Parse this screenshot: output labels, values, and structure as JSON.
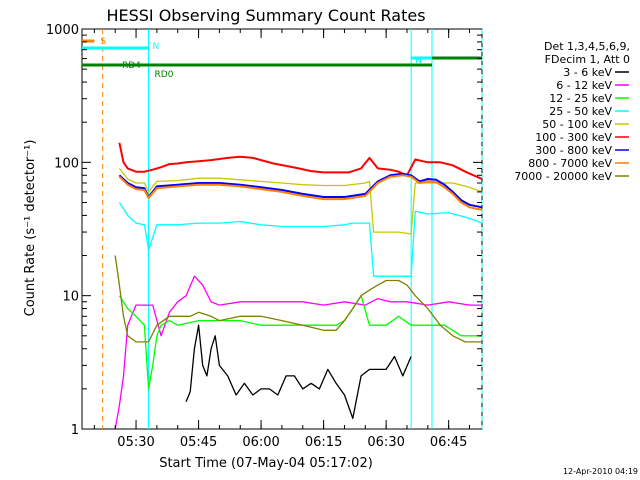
{
  "chart_data": {
    "type": "line",
    "title": "HESSI Observing Summary Count Rates",
    "xlabel": "Start Time (07-May-04 05:17:02)",
    "ylabel": "Count Rate (s⁻¹ detector⁻¹)",
    "yscale": "log",
    "ylim": [
      1,
      1000
    ],
    "x_start": "05:17:02",
    "x_end": "06:53",
    "x_ticks": [
      "05:30",
      "05:45",
      "06:00",
      "06:15",
      "06:30",
      "06:45"
    ],
    "y_ticks": [
      "1",
      "10",
      "100",
      "1000"
    ],
    "grid": false,
    "legend_position": "right",
    "legend_header": [
      "Det 1,3,4,5,6,9,",
      "FDecim 1, Att 0"
    ],
    "series": [
      {
        "name": "3 - 6 keV",
        "color": "#000000",
        "x": [
          "05:42",
          "05:43",
          "05:44",
          "05:45",
          "05:46",
          "05:47",
          "05:48",
          "05:49",
          "05:50",
          "05:52",
          "05:54",
          "05:56",
          "05:58",
          "06:00",
          "06:02",
          "06:04",
          "06:06",
          "06:08",
          "06:10",
          "06:12",
          "06:14",
          "06:16",
          "06:18",
          "06:20",
          "06:22",
          "06:24",
          "06:26",
          "06:28",
          "06:30",
          "06:32",
          "06:34",
          "06:36"
        ],
        "y": [
          1.6,
          1.9,
          4,
          6,
          3,
          2.5,
          4,
          5,
          3,
          2.5,
          1.8,
          2.2,
          1.8,
          2,
          2,
          1.8,
          2.5,
          2.5,
          2,
          2.2,
          2,
          2.8,
          2.2,
          1.8,
          1.2,
          2.5,
          2.8,
          2.8,
          2.8,
          3.5,
          2.5,
          3.5
        ]
      },
      {
        "name": "6 - 12 keV",
        "color": "#ff00ff",
        "x": [
          "05:25",
          "05:26",
          "05:27",
          "05:28",
          "05:30",
          "05:32",
          "05:34",
          "05:36",
          "05:38",
          "05:40",
          "05:42",
          "05:44",
          "05:46",
          "05:48",
          "05:50",
          "05:55",
          "06:00",
          "06:05",
          "06:10",
          "06:15",
          "06:20",
          "06:25",
          "06:28",
          "06:31",
          "06:35",
          "06:40",
          "06:45",
          "06:50",
          "06:53"
        ],
        "y": [
          1,
          1.5,
          2.5,
          6,
          8.5,
          8.5,
          8.5,
          5,
          7.5,
          9,
          10,
          14,
          12,
          9,
          8.5,
          9,
          9,
          9,
          9,
          8.5,
          9,
          8.5,
          9.5,
          9,
          9,
          8.5,
          9,
          8.5,
          8.5
        ]
      },
      {
        "name": "12 - 25 keV",
        "color": "#00ff00",
        "x": [
          "05:26",
          "05:28",
          "05:30",
          "05:32",
          "05:33",
          "05:34",
          "05:35",
          "05:36",
          "05:38",
          "05:40",
          "05:45",
          "05:50",
          "05:55",
          "06:00",
          "06:05",
          "06:10",
          "06:15",
          "06:18",
          "06:20",
          "06:22",
          "06:24",
          "06:26",
          "06:27",
          "06:30",
          "06:33",
          "06:36",
          "06:40",
          "06:44",
          "06:48",
          "06:53"
        ],
        "y": [
          10,
          8,
          7,
          6,
          2,
          3,
          5,
          6,
          6.5,
          6,
          6.5,
          6.5,
          6.5,
          6,
          6,
          6,
          6,
          6,
          6.5,
          8,
          10,
          6,
          6,
          6,
          7,
          6,
          6,
          6,
          5,
          5
        ]
      },
      {
        "name": "25 - 50 keV",
        "color": "#00ffff",
        "x": [
          "05:26",
          "05:28",
          "05:30",
          "05:32",
          "05:33",
          "05:35",
          "05:40",
          "05:45",
          "05:50",
          "05:55",
          "06:00",
          "06:05",
          "06:10",
          "06:15",
          "06:20",
          "06:22",
          "06:26",
          "06:27",
          "06:30",
          "06:33",
          "06:36",
          "06:37",
          "06:40",
          "06:45",
          "06:50",
          "06:53"
        ],
        "y": [
          50,
          40,
          35,
          34,
          22,
          34,
          34,
          35,
          35,
          36,
          34,
          33,
          33,
          33,
          34,
          35,
          35,
          14,
          14,
          14,
          14,
          43,
          41,
          42,
          38,
          35
        ]
      },
      {
        "name": "50 - 100 keV",
        "color": "#c8c800",
        "x": [
          "05:26",
          "05:28",
          "05:30",
          "05:32",
          "05:33",
          "05:35",
          "05:40",
          "05:45",
          "05:50",
          "05:55",
          "06:00",
          "06:05",
          "06:10",
          "06:15",
          "06:20",
          "06:25",
          "06:26",
          "06:27",
          "06:30",
          "06:33",
          "06:36",
          "06:37",
          "06:40",
          "06:43",
          "06:46",
          "06:50",
          "06:53"
        ],
        "y": [
          90,
          75,
          70,
          70,
          60,
          72,
          73,
          76,
          76,
          74,
          72,
          70,
          68,
          67,
          67,
          70,
          72,
          30,
          30,
          30,
          29,
          70,
          70,
          70,
          70,
          65,
          60
        ]
      },
      {
        "name": "100 - 300 keV",
        "color": "#ff0000",
        "x": [
          "05:26",
          "05:27",
          "05:28",
          "05:30",
          "05:32",
          "05:34",
          "05:36",
          "05:38",
          "05:40",
          "05:42",
          "05:45",
          "05:48",
          "05:50",
          "05:52",
          "05:55",
          "05:58",
          "06:00",
          "06:03",
          "06:06",
          "06:09",
          "06:12",
          "06:15",
          "06:18",
          "06:21",
          "06:24",
          "06:26",
          "06:28",
          "06:31",
          "06:33",
          "06:35",
          "06:37",
          "06:40",
          "06:43",
          "06:46",
          "06:49",
          "06:53"
        ],
        "y": [
          140,
          100,
          90,
          85,
          85,
          88,
          92,
          97,
          98,
          100,
          102,
          104,
          106,
          108,
          110,
          108,
          104,
          98,
          94,
          90,
          86,
          84,
          84,
          84,
          90,
          108,
          90,
          88,
          85,
          80,
          105,
          100,
          100,
          95,
          85,
          75
        ]
      },
      {
        "name": "300 - 800 keV",
        "color": "#0000ff",
        "x": [
          "05:26",
          "05:28",
          "05:30",
          "05:32",
          "05:33",
          "05:35",
          "05:40",
          "05:45",
          "05:50",
          "05:55",
          "06:00",
          "06:05",
          "06:10",
          "06:15",
          "06:20",
          "06:25",
          "06:28",
          "06:31",
          "06:34",
          "06:36",
          "06:38",
          "06:40",
          "06:42",
          "06:44",
          "06:46",
          "06:48",
          "06:50",
          "06:53"
        ],
        "y": [
          80,
          70,
          65,
          64,
          55,
          66,
          68,
          70,
          70,
          68,
          65,
          62,
          58,
          55,
          55,
          58,
          72,
          80,
          82,
          80,
          72,
          75,
          74,
          68,
          60,
          52,
          48,
          46
        ]
      },
      {
        "name": "800 - 7000 keV",
        "color": "#ff8000",
        "x": [
          "05:26",
          "05:28",
          "05:30",
          "05:32",
          "05:33",
          "05:35",
          "05:40",
          "05:45",
          "05:50",
          "05:55",
          "06:00",
          "06:05",
          "06:10",
          "06:15",
          "06:20",
          "06:25",
          "06:28",
          "06:31",
          "06:34",
          "06:36",
          "06:38",
          "06:40",
          "06:42",
          "06:44",
          "06:46",
          "06:48",
          "06:50",
          "06:53"
        ],
        "y": [
          78,
          68,
          63,
          62,
          54,
          64,
          66,
          68,
          68,
          66,
          63,
          60,
          56,
          53,
          53,
          56,
          70,
          78,
          80,
          78,
          70,
          72,
          71,
          65,
          58,
          50,
          46,
          44
        ]
      },
      {
        "name": "7000 - 20000 keV",
        "color": "#808000",
        "x": [
          "05:25",
          "05:26",
          "05:27",
          "05:28",
          "05:30",
          "05:33",
          "05:35",
          "05:38",
          "05:40",
          "05:43",
          "05:45",
          "05:48",
          "05:50",
          "05:55",
          "06:00",
          "06:05",
          "06:10",
          "06:15",
          "06:18",
          "06:20",
          "06:22",
          "06:24",
          "06:26",
          "06:28",
          "06:30",
          "06:33",
          "06:35",
          "06:37",
          "06:40",
          "06:43",
          "06:46",
          "06:49",
          "06:53"
        ],
        "y": [
          20,
          12,
          7,
          5,
          4.5,
          4.5,
          6,
          7,
          7,
          7,
          7.5,
          7,
          6.5,
          7,
          7,
          6.5,
          6,
          5.5,
          5.5,
          6.5,
          8,
          10,
          11,
          12,
          13,
          13,
          12,
          10,
          8,
          6,
          5,
          4.5,
          4.5
        ]
      }
    ],
    "flags": [
      {
        "label": "S",
        "color": "#ff8000",
        "x_start": "05:17:02",
        "x_end": "05:20"
      },
      {
        "label": "N",
        "color": "#00ffff",
        "x_start": "05:17:02",
        "x_end": "05:33"
      },
      {
        "label": "N",
        "color": "#00ffff",
        "x_start": "06:36",
        "x_end": "06:53"
      },
      {
        "label": "RD0",
        "color": "#008000",
        "x_start": "05:17:02",
        "x_end": "06:26"
      },
      {
        "label": "RD4",
        "color": "#008000",
        "x_start": "05:17:02",
        "x_end": "05:33"
      },
      {
        "label": "",
        "color": "#008000",
        "x_start": "06:26",
        "x_end": "06:41"
      },
      {
        "label": "",
        "color": "#008000",
        "x_start": "06:41",
        "x_end": "06:53"
      }
    ],
    "vlines": [
      {
        "x": "05:22",
        "color": "#ff8000",
        "style": "dashed"
      },
      {
        "x": "05:33",
        "color": "#00ffff",
        "style": "dashed"
      },
      {
        "x": "05:33",
        "color": "#00ffff",
        "style": "solid"
      },
      {
        "x": "06:36",
        "color": "#00ffff",
        "style": "solid"
      },
      {
        "x": "06:41",
        "color": "#00ffff",
        "style": "solid"
      },
      {
        "x": "06:53",
        "color": "#00ffff",
        "style": "dashed"
      }
    ],
    "footer": "12-Apr-2010 04:19"
  }
}
